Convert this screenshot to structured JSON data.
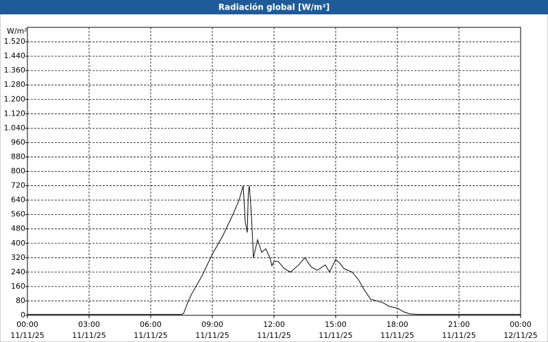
{
  "chart_data": {
    "type": "line",
    "title": "Radiación global [W/m²]",
    "y_label": "W/m²",
    "xlim": [
      0,
      24
    ],
    "xticks": [
      {
        "value": 0,
        "label": [
          "00:00",
          "11/11/25"
        ]
      },
      {
        "value": 3,
        "label": [
          "03:00",
          "11/11/25"
        ]
      },
      {
        "value": 6,
        "label": [
          "06:00",
          "11/11/25"
        ]
      },
      {
        "value": 9,
        "label": [
          "09:00",
          "11/11/25"
        ]
      },
      {
        "value": 12,
        "label": [
          "12:00",
          "11/11/25"
        ]
      },
      {
        "value": 15,
        "label": [
          "15:00",
          "11/11/25"
        ]
      },
      {
        "value": 18,
        "label": [
          "18:00",
          "11/11/25"
        ]
      },
      {
        "value": 21,
        "label": [
          "21:00",
          "11/11/25"
        ]
      },
      {
        "value": 24,
        "label": [
          "00:00",
          "12/11/25"
        ]
      }
    ],
    "ylim": [
      0,
      1600
    ],
    "yticks": [
      0,
      80,
      160,
      240,
      320,
      400,
      480,
      560,
      640,
      720,
      800,
      880,
      960,
      {
        "value": 1040,
        "label": "1.040"
      },
      {
        "value": 1120,
        "label": "1.120"
      },
      {
        "value": 1200,
        "label": "1.200"
      },
      {
        "value": 1280,
        "label": "1.280"
      },
      {
        "value": 1360,
        "label": "1.360"
      },
      {
        "value": 1440,
        "label": "1.440"
      },
      {
        "value": 1520,
        "label": "1.520"
      }
    ],
    "grid": true,
    "series": [
      {
        "color": "#000000",
        "x": [
          0,
          7.5,
          7.6,
          7.83,
          8.0,
          8.5,
          9.0,
          9.5,
          10.0,
          10.3,
          10.5,
          10.6,
          10.7,
          10.75,
          10.8,
          10.9,
          11.0,
          11.2,
          11.4,
          11.6,
          11.8,
          11.9,
          12.0,
          12.2,
          12.5,
          12.8,
          13.2,
          13.5,
          13.8,
          14.1,
          14.5,
          14.7,
          15.0,
          15.2,
          15.4,
          15.8,
          16.1,
          16.4,
          16.7,
          17.0,
          17.3,
          17.6,
          18.0,
          18.3,
          18.6,
          19.0,
          24
        ],
        "values": [
          5,
          5,
          10,
          80,
          120,
          220,
          340,
          440,
          560,
          640,
          720,
          520,
          460,
          680,
          720,
          560,
          320,
          420,
          350,
          370,
          320,
          275,
          300,
          300,
          260,
          240,
          280,
          320,
          270,
          250,
          280,
          240,
          310,
          290,
          260,
          240,
          200,
          140,
          90,
          80,
          70,
          50,
          40,
          20,
          8,
          5,
          5
        ]
      }
    ]
  }
}
